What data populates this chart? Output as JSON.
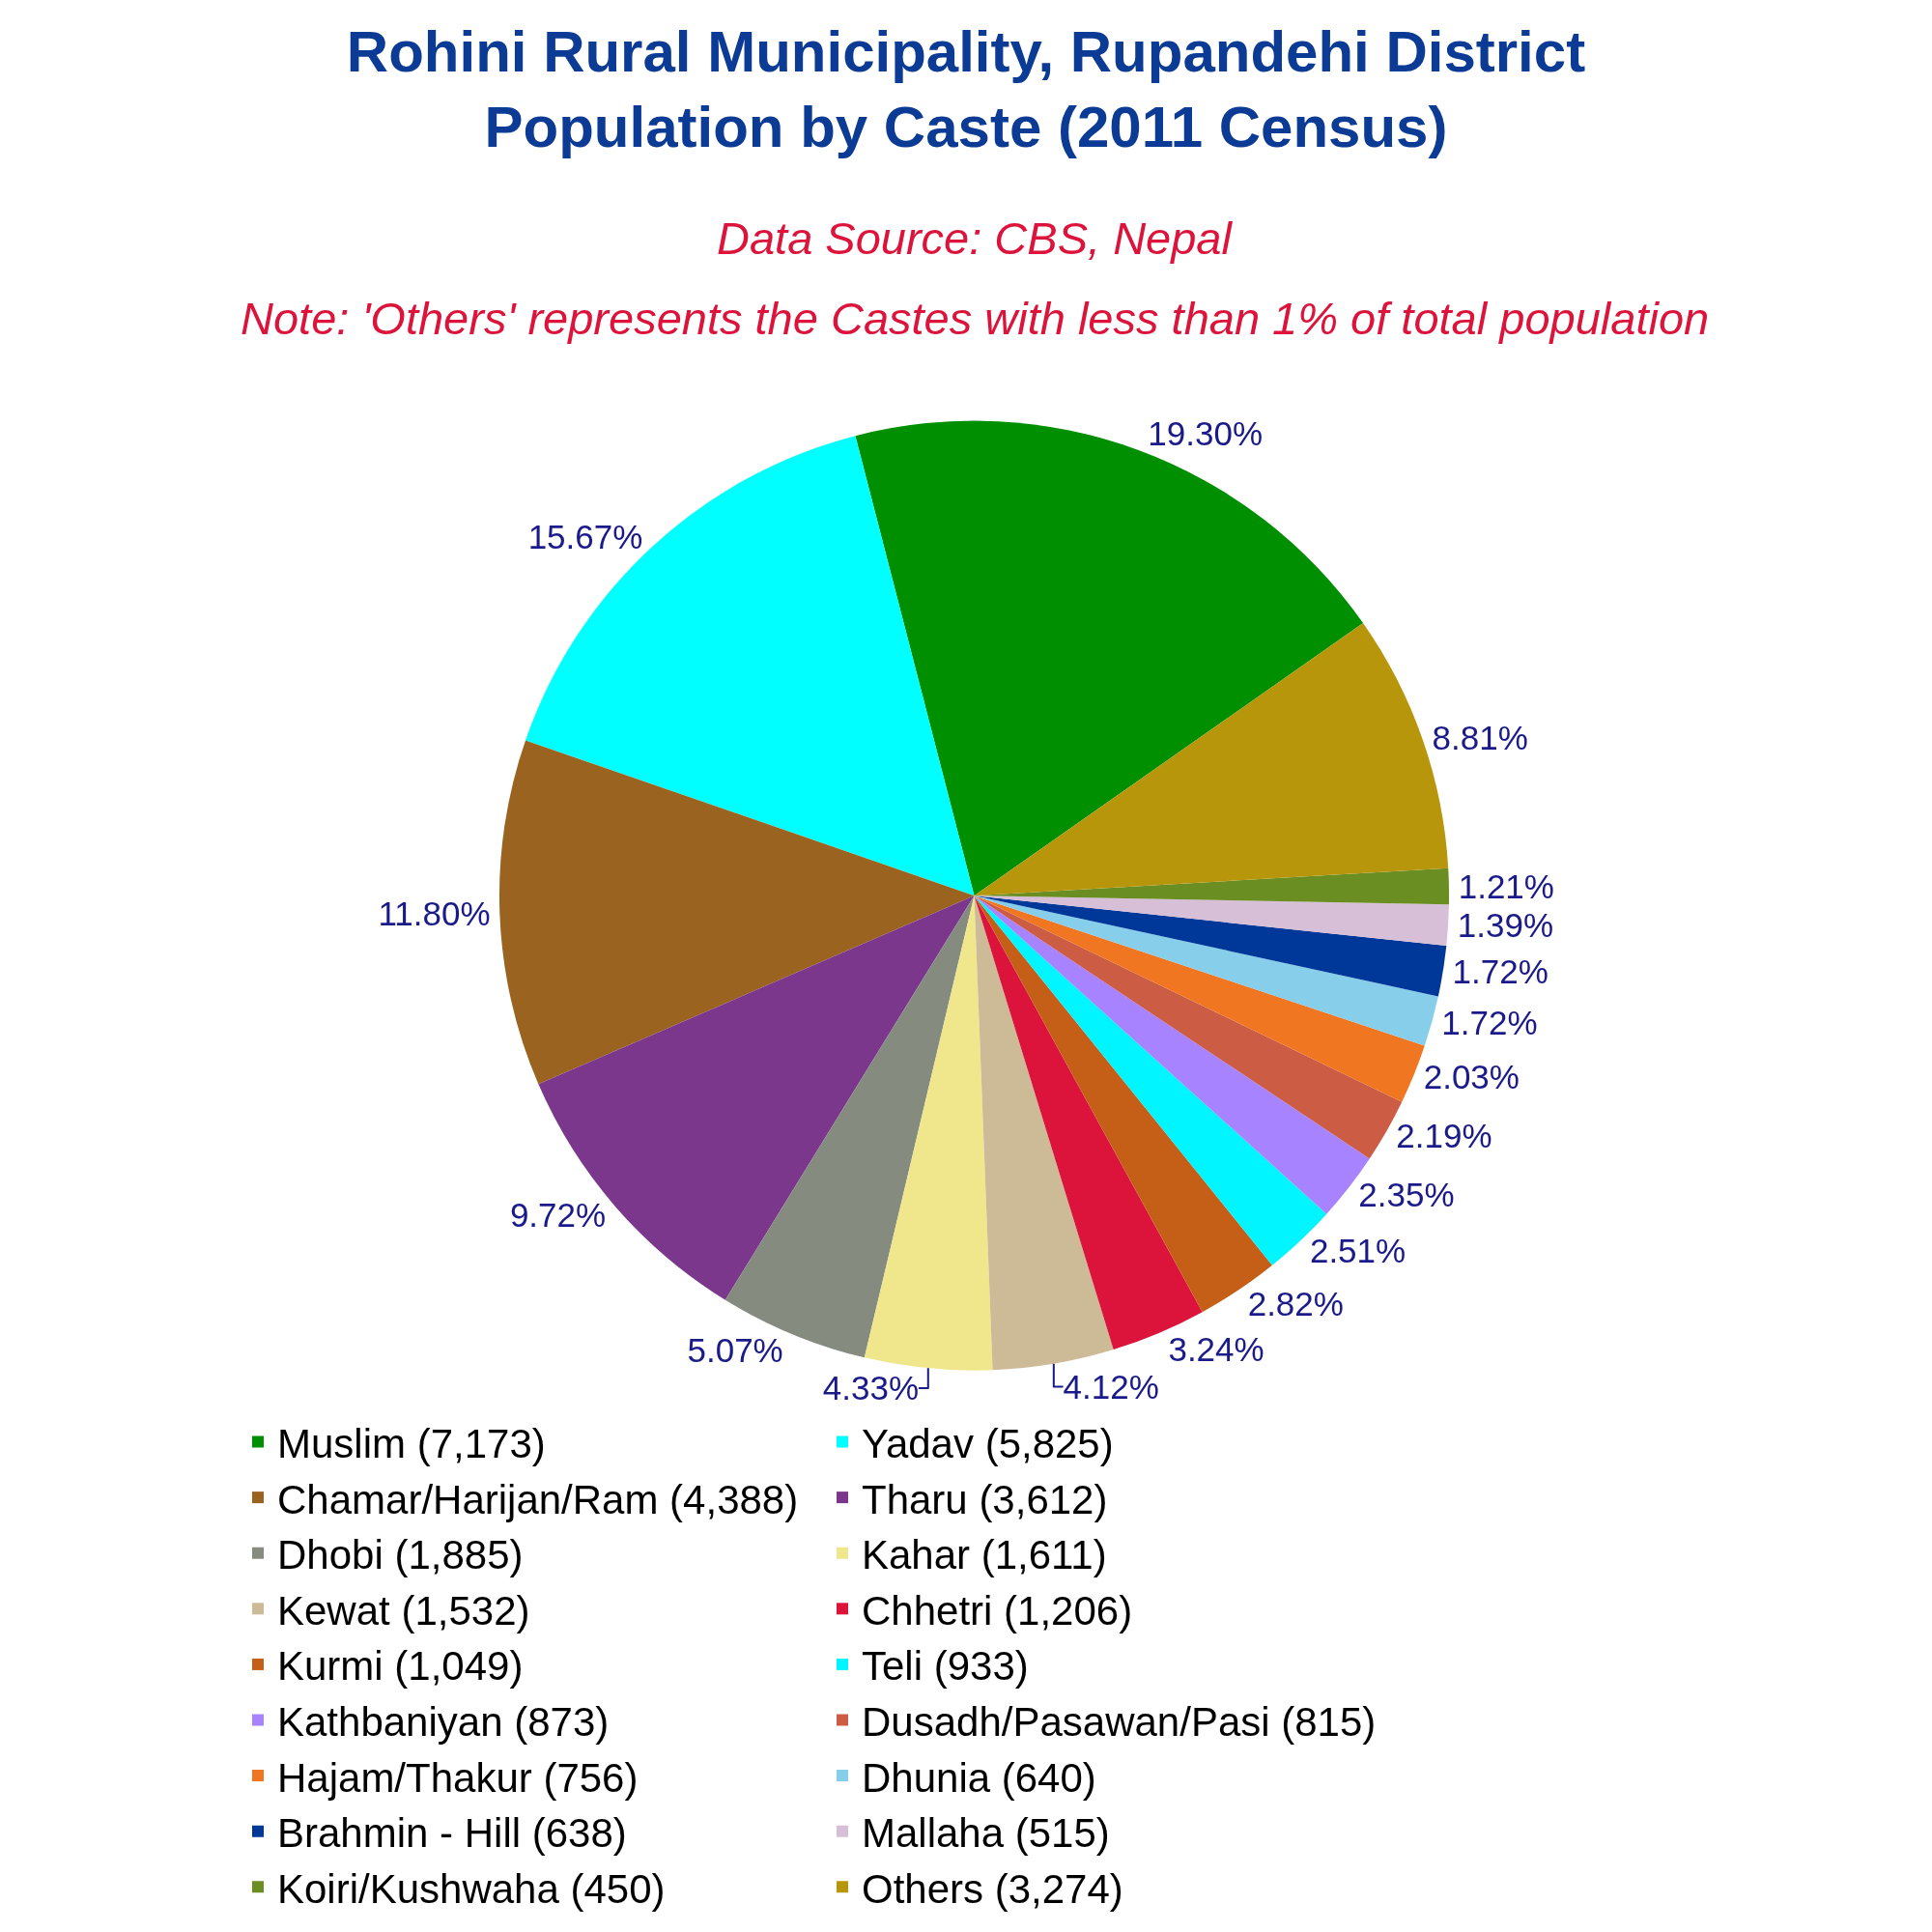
{
  "chart_data": {
    "type": "pie",
    "title": "Rohini Rural Municipality, Rupandehi District\nPopulation by Caste (2011 Census)",
    "subtitle": "Data Source: CBS, Nepal",
    "annotations": [
      "Note: 'Others' represents the Castes with less than 1% of total population"
    ],
    "categories": [
      "Muslim (7,173)",
      "Yadav (5,825)",
      "Chamar/Harijan/Ram (4,388)",
      "Tharu (3,612)",
      "Dhobi (1,885)",
      "Kahar (1,611)",
      "Kewat (1,532)",
      "Chhetri (1,206)",
      "Kurmi (1,049)",
      "Teli (933)",
      "Kathbaniyan (873)",
      "Dusadh/Pasawan/Pasi (815)",
      "Hajam/Thakur (756)",
      "Dhunia (640)",
      "Brahmin - Hill (638)",
      "Mallaha (515)",
      "Koiri/Kushwaha (450)",
      "Others (3,274)"
    ],
    "values": [
      19.3,
      15.67,
      11.8,
      9.72,
      5.07,
      4.33,
      4.12,
      3.24,
      2.82,
      2.51,
      2.35,
      2.19,
      2.03,
      1.72,
      1.72,
      1.39,
      1.21,
      8.81
    ],
    "value_labels": [
      "19.30%",
      "15.67%",
      "11.80%",
      "9.72%",
      "5.07%",
      "4.33%",
      "4.12%",
      "3.24%",
      "2.82%",
      "2.51%",
      "2.35%",
      "2.19%",
      "2.03%",
      "1.72%",
      "1.72%",
      "1.39%",
      "1.21%",
      "8.81%"
    ],
    "colors": [
      "#008f00",
      "#00ffff",
      "#9a6420",
      "#7b378b",
      "#858b7f",
      "#f0e68c",
      "#cdba96",
      "#dc143c",
      "#c55e16",
      "#00f5ff",
      "#a883ff",
      "#cd5c45",
      "#f07622",
      "#87ceeb",
      "#00389a",
      "#d8bfd8",
      "#6b8e23",
      "#b8960b"
    ],
    "legend": "bottom"
  }
}
